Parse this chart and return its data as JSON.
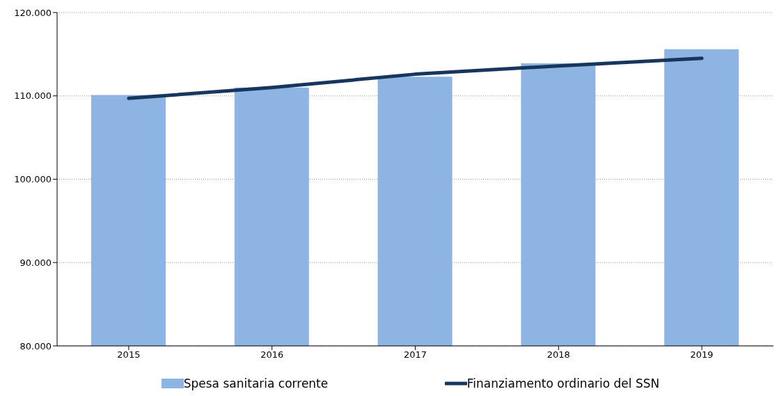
{
  "chart_data": {
    "type": "bar",
    "categories": [
      "2015",
      "2016",
      "2017",
      "2018",
      "2019"
    ],
    "series": [
      {
        "name": "Spesa sanitaria corrente",
        "color": "#8eb4e3",
        "values": [
          110100,
          111000,
          112300,
          113900,
          115600
        ]
      },
      {
        "name": "Finanziamento ordinario del SSN",
        "type": "line",
        "color": "#17365d",
        "values": [
          109700,
          111000,
          112600,
          113600,
          114500
        ]
      }
    ],
    "ylim": [
      80000,
      120000
    ],
    "yticks": [
      {
        "value": 80000,
        "label": "80.000"
      },
      {
        "value": 90000,
        "label": "90.000"
      },
      {
        "value": 100000,
        "label": "100.000"
      },
      {
        "value": 110000,
        "label": "110.000"
      },
      {
        "value": 120000,
        "label": "120.000"
      }
    ],
    "grid": "y",
    "legend": "bottom",
    "marker": "none",
    "line_style": "solid"
  }
}
